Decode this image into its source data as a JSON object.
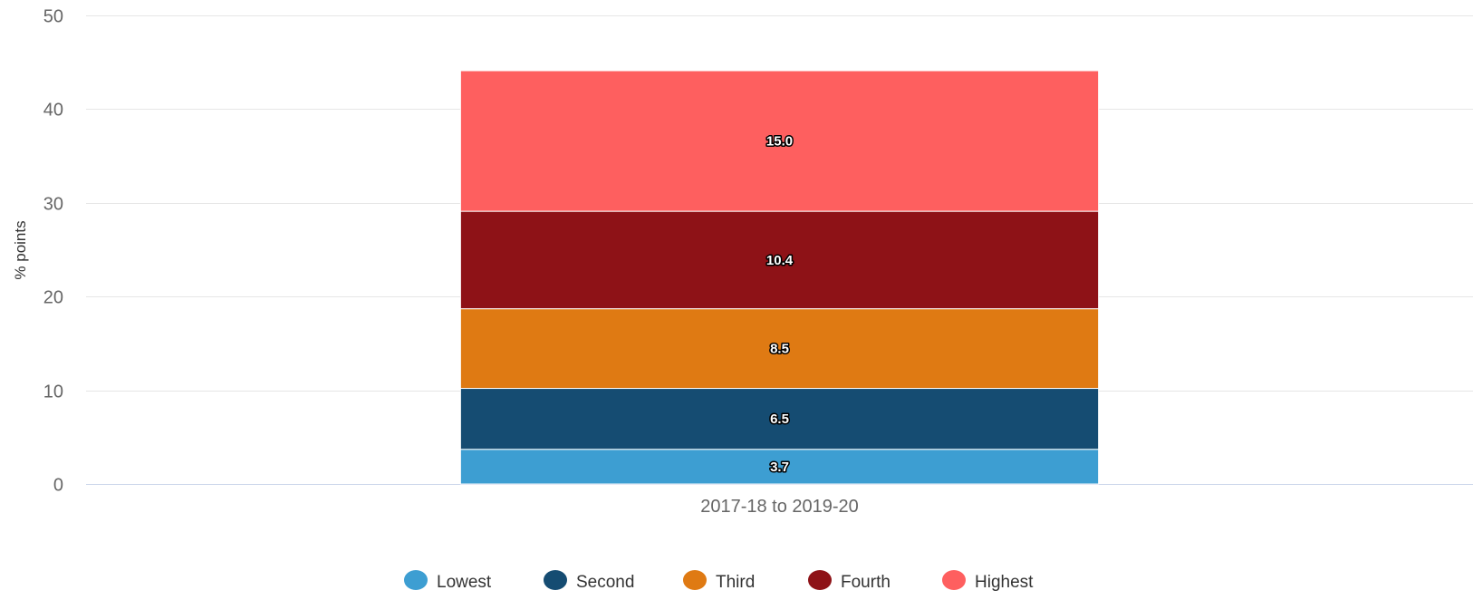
{
  "chart_data": {
    "type": "bar",
    "stacked": true,
    "categories": [
      "2017-18 to 2019-20"
    ],
    "series": [
      {
        "name": "Lowest",
        "values": [
          3.7
        ],
        "color": "#3d9ed2"
      },
      {
        "name": "Second",
        "values": [
          6.5
        ],
        "color": "#154c72"
      },
      {
        "name": "Third",
        "values": [
          8.5
        ],
        "color": "#df7a13"
      },
      {
        "name": "Fourth",
        "values": [
          10.4
        ],
        "color": "#8e1217"
      },
      {
        "name": "Highest",
        "values": [
          15.0
        ],
        "color": "#fe5f5f"
      }
    ],
    "data_labels": [
      "3.7",
      "6.5",
      "8.5",
      "10.4",
      "15.0"
    ],
    "title": "",
    "xlabel": "",
    "ylabel": "% points",
    "ylim": [
      0,
      50
    ],
    "yticks": [
      0,
      10,
      20,
      30,
      40,
      50
    ],
    "grid": true,
    "legend_position": "bottom"
  }
}
